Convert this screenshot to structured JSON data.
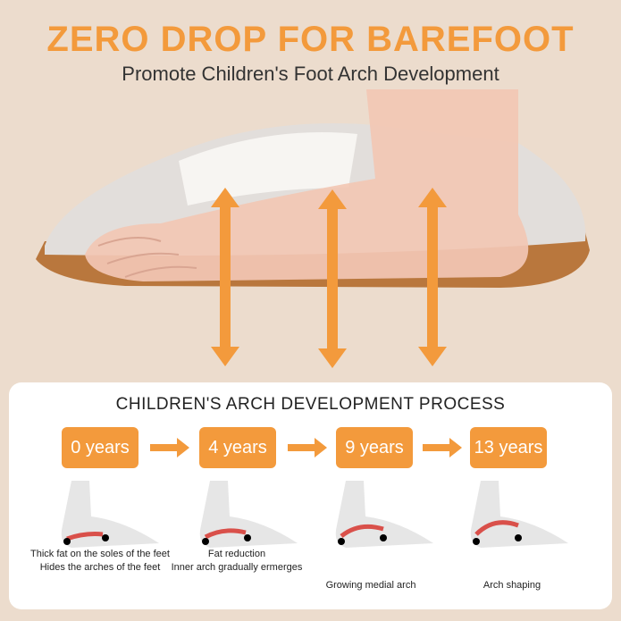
{
  "header": {
    "title": "ZERO DROP FOR BAREFOOT",
    "subtitle": "Promote Children's Foot Arch Development"
  },
  "colors": {
    "accent": "#f39a3c",
    "background": "#ecdccd",
    "arch": "#d9504a"
  },
  "process": {
    "title": "CHILDREN'S ARCH DEVELOPMENT PROCESS",
    "stages": [
      {
        "label": "0 years",
        "caption1": "Thick fat on the soles of the feet",
        "caption2": "Hides the arches of the feet"
      },
      {
        "label": "4 years",
        "caption1": "Fat reduction",
        "caption2": "Inner arch gradually ermerges"
      },
      {
        "label": "9 years",
        "caption1": "Growing medial arch",
        "caption2": ""
      },
      {
        "label": "13 years",
        "caption1": "Arch shaping",
        "caption2": ""
      }
    ]
  }
}
